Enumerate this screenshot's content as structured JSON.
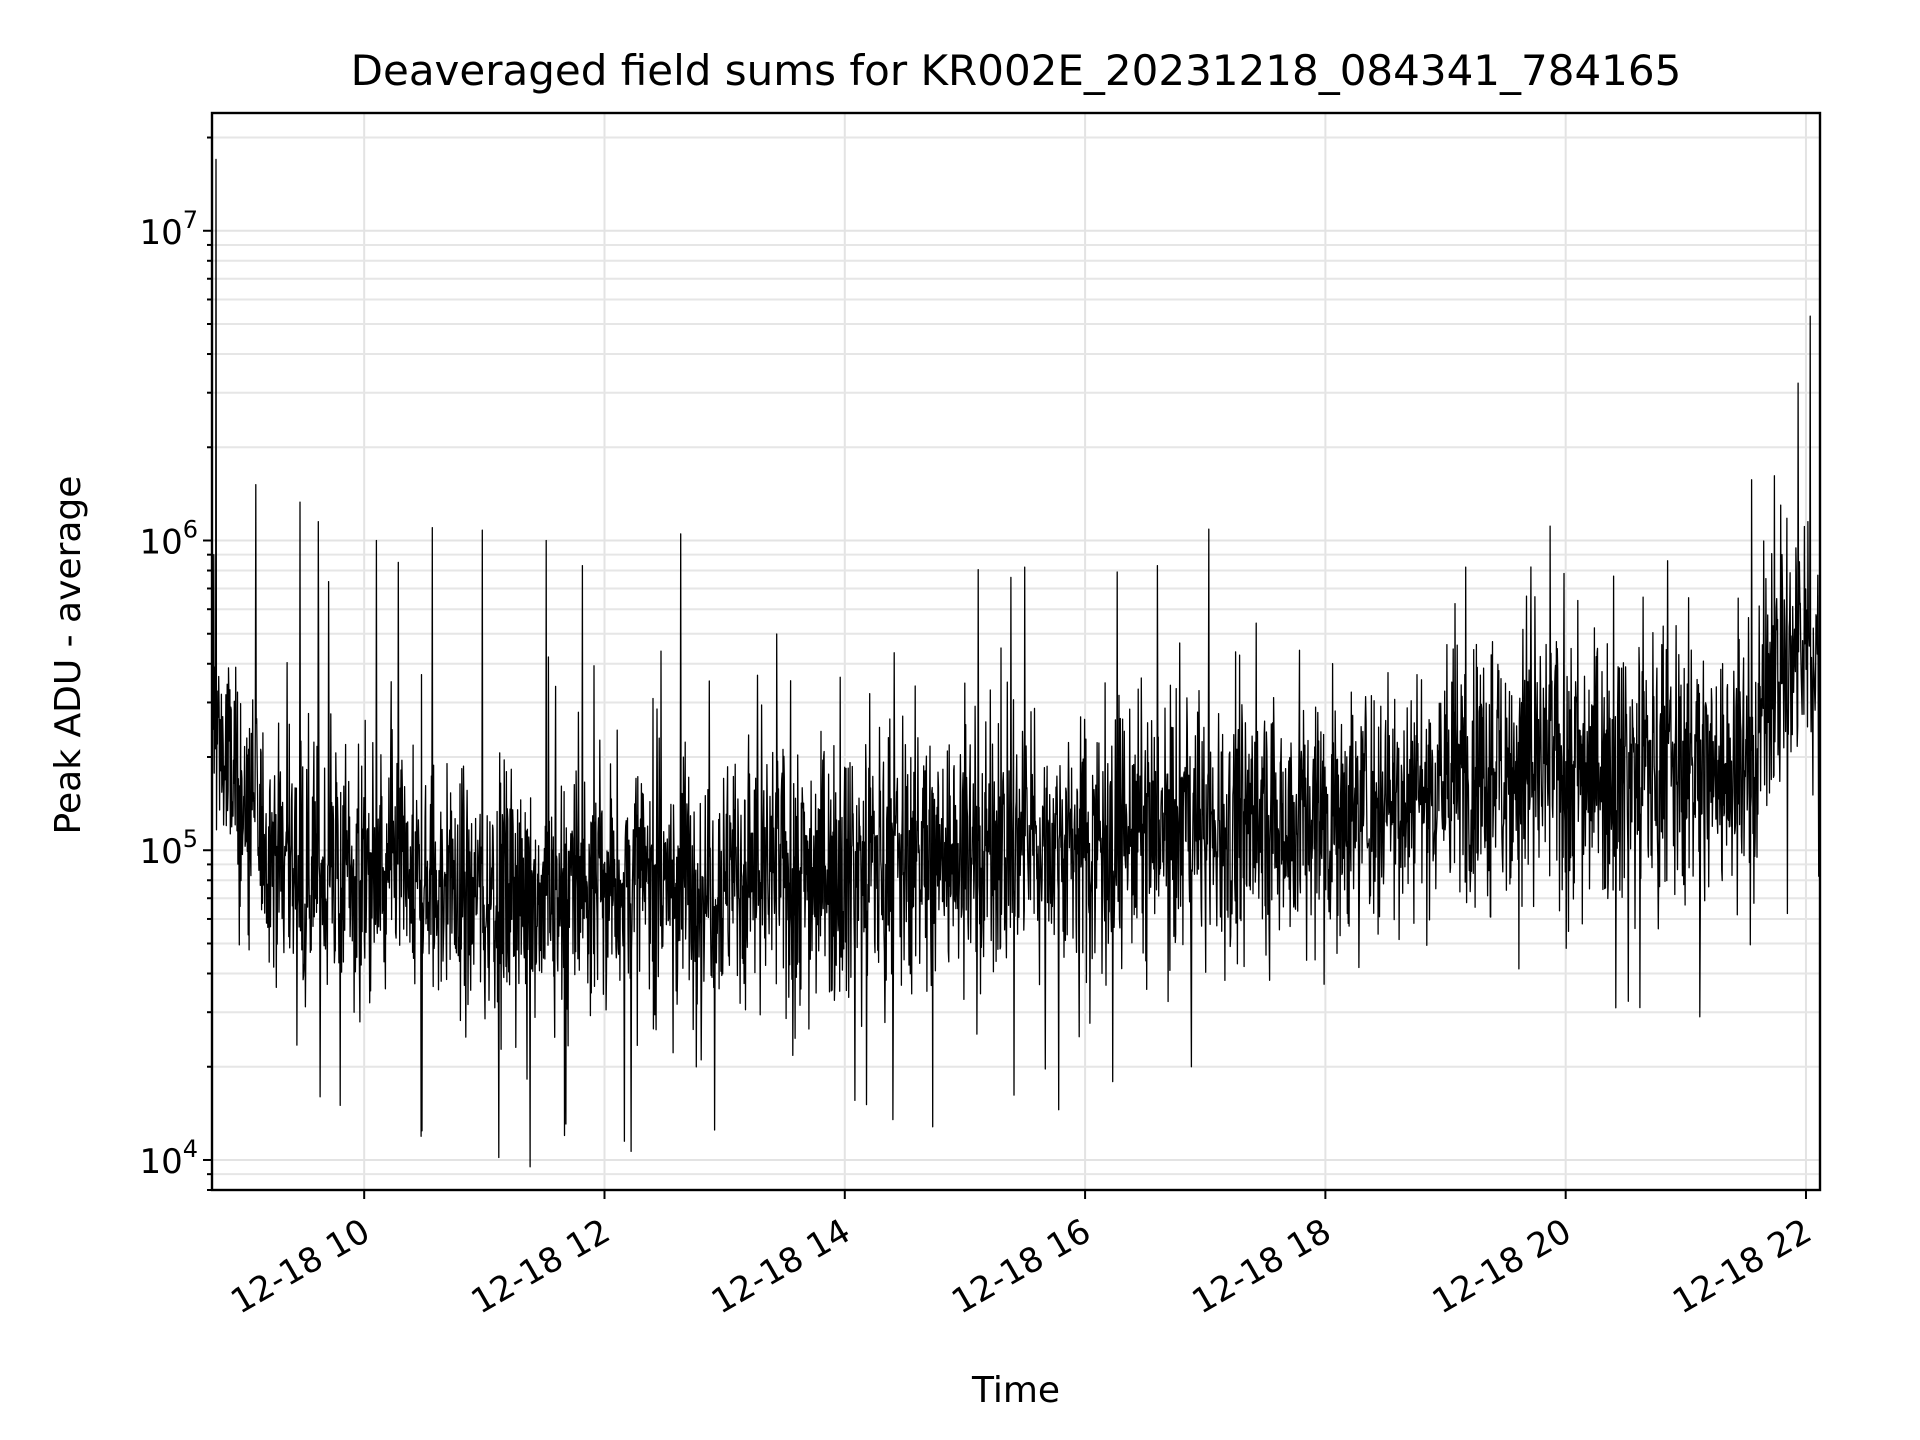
{
  "chart_data": {
    "type": "line",
    "title": "Deaveraged field sums for KR002E_20231218_084341_784165",
    "xlabel": "Time",
    "ylabel": "Peak ADU - average",
    "yscale": "log",
    "ylim": [
      8000,
      24000000
    ],
    "xlim": [
      "2023-12-18 08:44",
      "2023-12-18 22:07"
    ],
    "x_ticks": [
      {
        "at": "2023-12-18 10:00",
        "label": "12-18 10"
      },
      {
        "at": "2023-12-18 12:00",
        "label": "12-18 12"
      },
      {
        "at": "2023-12-18 14:00",
        "label": "12-18 14"
      },
      {
        "at": "2023-12-18 16:00",
        "label": "12-18 16"
      },
      {
        "at": "2023-12-18 18:00",
        "label": "12-18 18"
      },
      {
        "at": "2023-12-18 20:00",
        "label": "12-18 20"
      },
      {
        "at": "2023-12-18 22:00",
        "label": "12-18 22"
      }
    ],
    "y_ticks": [
      {
        "value": 10000,
        "base": "10",
        "exp": "4"
      },
      {
        "value": 100000,
        "base": "10",
        "exp": "5"
      },
      {
        "value": 1000000,
        "base": "10",
        "exp": "6"
      },
      {
        "value": 10000000,
        "base": "10",
        "exp": "7"
      }
    ],
    "grid": true,
    "line_color": "#000000",
    "series": [
      {
        "x": [
          "2023-12-18 08:44",
          "2023-12-18 08:46",
          "2023-12-18 08:50",
          "2023-12-18 08:55",
          "2023-12-18 09:00",
          "2023-12-18 09:10",
          "2023-12-18 09:20",
          "2023-12-18 09:30",
          "2023-12-18 09:40",
          "2023-12-18 09:50",
          "2023-12-18 10:00",
          "2023-12-18 10:20",
          "2023-12-18 10:40",
          "2023-12-18 11:00",
          "2023-12-18 11:20",
          "2023-12-18 11:40",
          "2023-12-18 12:00",
          "2023-12-18 12:30",
          "2023-12-18 13:00",
          "2023-12-18 13:30",
          "2023-12-18 14:00",
          "2023-12-18 14:30",
          "2023-12-18 15:00",
          "2023-12-18 15:30",
          "2023-12-18 16:00",
          "2023-12-18 16:30",
          "2023-12-18 17:00",
          "2023-12-18 17:30",
          "2023-12-18 18:00",
          "2023-12-18 18:30",
          "2023-12-18 19:00",
          "2023-12-18 19:30",
          "2023-12-18 20:00",
          "2023-12-18 20:30",
          "2023-12-18 21:00",
          "2023-12-18 21:20",
          "2023-12-18 21:35",
          "2023-12-18 21:40",
          "2023-12-18 21:50",
          "2023-12-18 22:00",
          "2023-12-18 22:07"
        ],
        "y": [
          300000,
          250000,
          200000,
          160000,
          130000,
          110000,
          95000,
          90000,
          85000,
          82000,
          80000,
          78000,
          75000,
          72000,
          72000,
          75000,
          78000,
          80000,
          82000,
          85000,
          90000,
          95000,
          100000,
          105000,
          110000,
          115000,
          120000,
          125000,
          130000,
          150000,
          170000,
          185000,
          190000,
          190000,
          185000,
          180000,
          200000,
          350000,
          400000,
          420000,
          450000
        ]
      }
    ],
    "spikes": [
      {
        "x": "2023-12-18 08:46",
        "y": 17000000
      },
      {
        "x": "2023-12-18 08:45",
        "y": 900000
      },
      {
        "x": "2023-12-18 09:28",
        "y": 1330000
      },
      {
        "x": "2023-12-18 09:37",
        "y": 1150000
      },
      {
        "x": "2023-12-18 10:06",
        "y": 1000000
      },
      {
        "x": "2023-12-18 10:17",
        "y": 850000
      },
      {
        "x": "2023-12-18 10:34",
        "y": 1100000
      },
      {
        "x": "2023-12-18 10:59",
        "y": 1080000
      },
      {
        "x": "2023-12-18 11:31",
        "y": 1000000
      },
      {
        "x": "2023-12-18 11:49",
        "y": 830000
      },
      {
        "x": "2023-12-18 12:38",
        "y": 1050000
      },
      {
        "x": "2023-12-18 15:23",
        "y": 760000
      },
      {
        "x": "2023-12-18 19:10",
        "y": 820000
      },
      {
        "x": "2023-12-18 20:06",
        "y": 640000
      },
      {
        "x": "2023-12-18 22:02",
        "y": 5300000
      },
      {
        "x": "2023-12-18 21:48",
        "y": 900000
      }
    ],
    "dips": [
      {
        "x": "2023-12-18 09:38",
        "y": 16000
      },
      {
        "x": "2023-12-18 09:48",
        "y": 15000
      },
      {
        "x": "2023-12-18 11:40",
        "y": 12000
      },
      {
        "x": "2023-12-18 12:10",
        "y": 11500
      },
      {
        "x": "2023-12-18 12:55",
        "y": 12500
      },
      {
        "x": "2023-12-18 14:24",
        "y": 13500
      },
      {
        "x": "2023-12-18 14:44",
        "y": 12800
      },
      {
        "x": "2023-12-18 15:57",
        "y": 25000
      },
      {
        "x": "2023-12-18 16:53",
        "y": 20000
      },
      {
        "x": "2023-12-18 20:25",
        "y": 31000
      },
      {
        "x": "2023-12-18 21:07",
        "y": 29000
      }
    ]
  }
}
